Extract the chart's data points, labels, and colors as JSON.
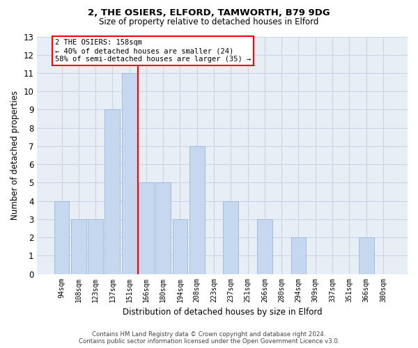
{
  "title1": "2, THE OSIERS, ELFORD, TAMWORTH, B79 9DG",
  "title2": "Size of property relative to detached houses in Elford",
  "xlabel": "Distribution of detached houses by size in Elford",
  "ylabel": "Number of detached properties",
  "categories": [
    "94sqm",
    "108sqm",
    "123sqm",
    "137sqm",
    "151sqm",
    "166sqm",
    "180sqm",
    "194sqm",
    "208sqm",
    "223sqm",
    "237sqm",
    "251sqm",
    "266sqm",
    "280sqm",
    "294sqm",
    "309sqm",
    "337sqm",
    "351sqm",
    "366sqm",
    "380sqm"
  ],
  "values": [
    4,
    3,
    3,
    9,
    11,
    5,
    5,
    3,
    7,
    0,
    4,
    0,
    3,
    0,
    2,
    0,
    0,
    0,
    2,
    0
  ],
  "bar_color": "#c5d8f0",
  "bar_edgecolor": "#9ab8d8",
  "vline_x": 4.5,
  "vline_color": "red",
  "ylim": [
    0,
    13
  ],
  "yticks": [
    0,
    1,
    2,
    3,
    4,
    5,
    6,
    7,
    8,
    9,
    10,
    11,
    12,
    13
  ],
  "annotation_text": "2 THE OSIERS: 158sqm\n← 40% of detached houses are smaller (24)\n58% of semi-detached houses are larger (35) →",
  "annotation_box_color": "white",
  "annotation_box_edgecolor": "red",
  "footer1": "Contains HM Land Registry data © Crown copyright and database right 2024.",
  "footer2": "Contains public sector information licensed under the Open Government Licence v3.0.",
  "grid_color": "#ccd5e3",
  "background_color": "#e8eef5"
}
